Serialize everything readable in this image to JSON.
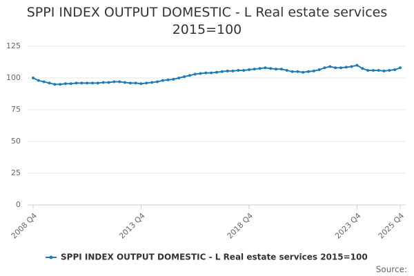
{
  "chart_data": {
    "type": "line",
    "title": "SPPI INDEX OUTPUT DOMESTIC - L Real estate services 2015=100",
    "categories": [
      "2008 Q4",
      null,
      null,
      null,
      null,
      null,
      null,
      null,
      null,
      null,
      null,
      null,
      null,
      null,
      null,
      null,
      null,
      null,
      null,
      null,
      "2013 Q4",
      null,
      null,
      null,
      null,
      null,
      null,
      null,
      null,
      null,
      null,
      null,
      null,
      null,
      null,
      null,
      null,
      null,
      null,
      null,
      "2018 Q4",
      null,
      null,
      null,
      null,
      null,
      null,
      null,
      null,
      null,
      null,
      null,
      null,
      null,
      null,
      null,
      null,
      null,
      null,
      null,
      "2023 Q4",
      null,
      null,
      null,
      null,
      null,
      null,
      null,
      "2025 Q4"
    ],
    "series": [
      {
        "name": "SPPI INDEX OUTPUT DOMESTIC - L Real estate services 2015=100",
        "color": "#1f7ab8",
        "values": [
          100,
          98,
          97,
          96,
          95,
          95,
          95.5,
          95.5,
          96,
          96,
          96,
          96,
          96,
          96.5,
          96.5,
          97,
          97,
          96.5,
          96,
          96,
          95.5,
          96,
          96.5,
          97,
          98,
          98.5,
          99,
          100,
          101,
          102,
          103,
          103.5,
          104,
          104,
          104.5,
          105,
          105.5,
          105.5,
          106,
          106,
          106.5,
          107,
          107.5,
          108,
          107.5,
          107,
          107,
          106,
          105,
          105,
          104.5,
          105,
          105.5,
          106.5,
          108,
          109,
          108,
          108,
          108.5,
          109,
          110,
          107.5,
          106,
          106,
          106,
          105.5,
          106,
          106.5,
          108
        ]
      }
    ],
    "ylim": [
      0,
      125
    ],
    "yticks": [
      0,
      25,
      50,
      75,
      100,
      125
    ],
    "grid": true,
    "legend": "bottom",
    "source": "Source:"
  }
}
